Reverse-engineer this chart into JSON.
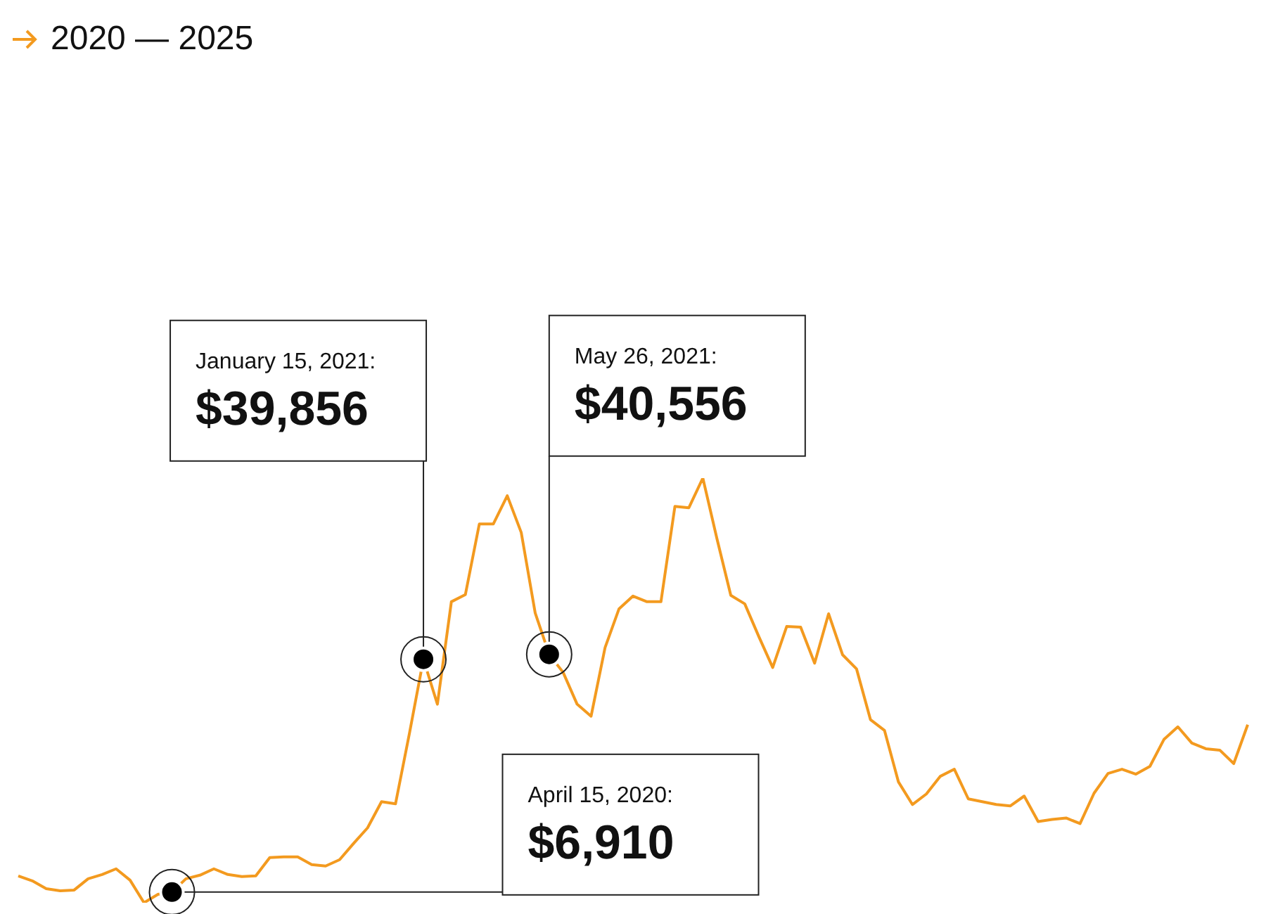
{
  "chart_data": {
    "type": "line",
    "title": "2020 — 2025",
    "color": "#f39a1f",
    "categories": [
      null,
      null,
      null,
      null,
      null,
      null,
      null,
      null,
      null,
      null,
      null,
      null,
      null,
      null,
      null,
      null,
      null,
      null,
      null,
      null,
      null,
      null,
      null,
      null,
      null,
      null,
      null,
      null,
      null,
      null,
      null,
      null,
      null,
      null,
      null,
      null,
      null,
      null,
      null,
      null,
      null,
      null,
      null,
      null,
      null,
      null,
      null,
      null,
      null,
      null,
      null,
      null,
      null,
      null,
      null,
      null,
      null,
      null,
      null,
      null,
      null,
      null,
      null,
      null,
      null,
      null,
      null,
      null,
      null,
      null,
      null,
      null,
      null,
      null,
      null,
      null,
      null,
      null,
      null,
      null,
      null,
      null,
      null,
      null,
      null,
      null,
      null,
      null,
      null
    ],
    "values": [
      9200,
      8500,
      7400,
      7100,
      7200,
      8800,
      9400,
      10200,
      8600,
      5400,
      6600,
      6910,
      8800,
      9300,
      10200,
      9400,
      9100,
      9200,
      11800,
      11900,
      11900,
      10800,
      10600,
      11500,
      13800,
      16000,
      19700,
      19400,
      29400,
      39856,
      33500,
      48000,
      49000,
      59000,
      59000,
      63000,
      57800,
      46400,
      40556,
      38000,
      33500,
      31800,
      41500,
      47000,
      48800,
      48000,
      48000,
      61500,
      61300,
      65500,
      57000,
      48900,
      47700,
      43100,
      38700,
      44500,
      44400,
      39300,
      46300,
      40500,
      38500,
      31300,
      29800,
      22500,
      19300,
      20800,
      23300,
      24300,
      20100,
      19700,
      19300,
      19100,
      20500,
      16900,
      17200,
      17400,
      16600,
      20900,
      23700,
      24300,
      23600,
      24700,
      28500,
      30300,
      28000,
      27200,
      27000,
      25100,
      30600
    ],
    "value_labels": [
      null,
      null,
      null,
      null,
      null,
      null,
      null,
      null,
      null,
      null,
      null,
      "April 15, 2020:\n$6,910",
      null,
      null,
      null,
      null,
      null,
      null,
      null,
      null,
      null,
      null,
      null,
      null,
      null,
      null,
      null,
      null,
      null,
      "January 15, 2021:\n$39,856",
      null,
      null,
      null,
      null,
      null,
      null,
      null,
      null,
      "May 26, 2021:\n$40,556",
      null,
      null,
      null,
      null,
      null,
      null,
      null,
      null,
      null,
      null,
      null,
      null,
      null,
      null,
      null,
      null,
      null,
      null,
      null,
      null,
      null,
      null,
      null,
      null,
      null,
      null,
      null,
      null,
      null,
      null,
      null,
      null,
      null,
      null,
      null,
      null,
      null,
      null,
      null,
      null,
      null,
      null,
      null,
      null,
      null,
      null,
      null,
      null,
      null,
      null
    ]
  }
}
